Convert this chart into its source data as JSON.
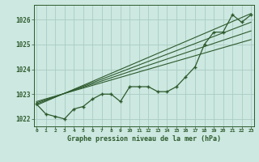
{
  "title": "Graphe pression niveau de la mer (hPa)",
  "background_color": "#cce8e0",
  "grid_color": "#aaccc4",
  "line_color": "#2d5a2d",
  "hours": [
    0,
    1,
    2,
    3,
    4,
    5,
    6,
    7,
    8,
    9,
    10,
    11,
    12,
    13,
    14,
    15,
    16,
    17,
    18,
    19,
    20,
    21,
    22,
    23
  ],
  "pressure": [
    1022.6,
    1022.2,
    1022.1,
    1022.0,
    1022.4,
    1022.5,
    1022.8,
    1023.0,
    1023.0,
    1022.7,
    1023.3,
    1023.3,
    1023.3,
    1023.1,
    1023.1,
    1023.3,
    1023.7,
    1024.1,
    1025.0,
    1025.5,
    1025.5,
    1026.2,
    1025.9,
    1026.2
  ],
  "trend_lines": [
    {
      "x0": 0,
      "y0": 1022.55,
      "x1": 23,
      "y1": 1026.25
    },
    {
      "x0": 0,
      "y0": 1022.6,
      "x1": 23,
      "y1": 1025.9
    },
    {
      "x0": 0,
      "y0": 1022.65,
      "x1": 23,
      "y1": 1025.55
    },
    {
      "x0": 0,
      "y0": 1022.7,
      "x1": 23,
      "y1": 1025.2
    }
  ],
  "ylim": [
    1021.7,
    1026.6
  ],
  "xlim": [
    -0.3,
    23.3
  ],
  "yticks": [
    1022,
    1023,
    1024,
    1025,
    1026
  ],
  "xticks": [
    0,
    1,
    2,
    3,
    4,
    5,
    6,
    7,
    8,
    9,
    10,
    11,
    12,
    13,
    14,
    15,
    16,
    17,
    18,
    19,
    20,
    21,
    22,
    23
  ]
}
